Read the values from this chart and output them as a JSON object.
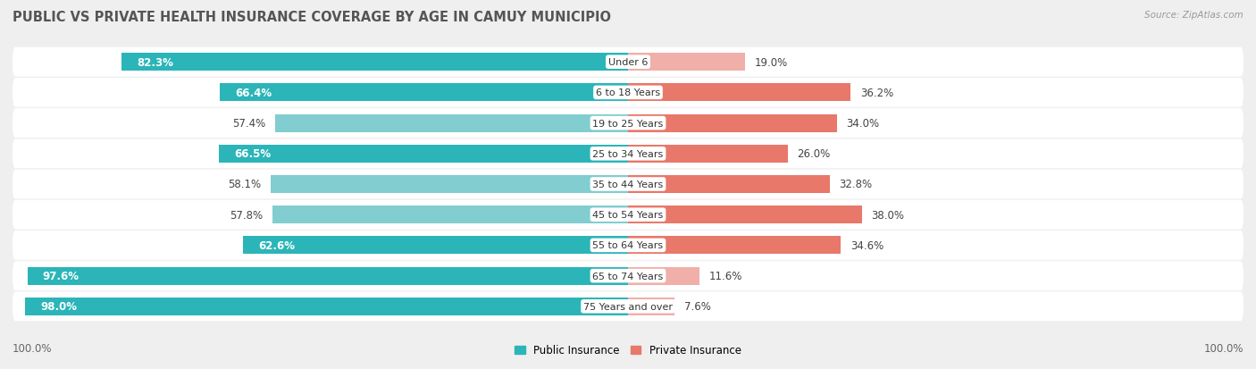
{
  "title": "PUBLIC VS PRIVATE HEALTH INSURANCE COVERAGE BY AGE IN CAMUY MUNICIPIO",
  "source": "Source: ZipAtlas.com",
  "categories": [
    "Under 6",
    "6 to 18 Years",
    "19 to 25 Years",
    "25 to 34 Years",
    "35 to 44 Years",
    "45 to 54 Years",
    "55 to 64 Years",
    "65 to 74 Years",
    "75 Years and over"
  ],
  "public_values": [
    82.3,
    66.4,
    57.4,
    66.5,
    58.1,
    57.8,
    62.6,
    97.6,
    98.0
  ],
  "private_values": [
    19.0,
    36.2,
    34.0,
    26.0,
    32.8,
    38.0,
    34.6,
    11.6,
    7.6
  ],
  "public_color_dark": "#2BB5B8",
  "public_color_light": "#82CDD0",
  "private_color_dark": "#E8786A",
  "private_color_light": "#F0AFA9",
  "bg_color": "#EFEFEF",
  "row_bg_even": "#FAFAFA",
  "row_bg_odd": "#F2F2F2",
  "bar_height": 0.58,
  "legend_public": "Public Insurance",
  "legend_private": "Private Insurance",
  "title_fontsize": 10.5,
  "label_fontsize": 8.5,
  "axis_label_left": "100.0%",
  "axis_label_right": "100.0%",
  "public_dark_threshold": 62.0,
  "private_dark_threshold": 20.0
}
